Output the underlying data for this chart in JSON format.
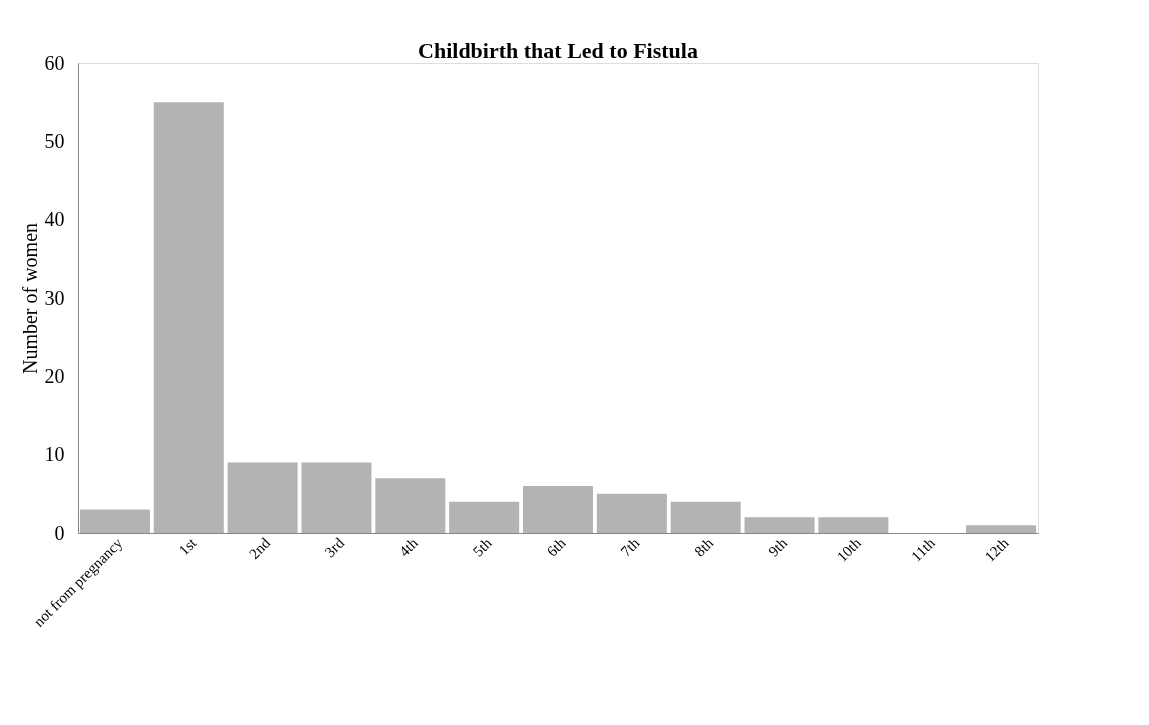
{
  "chart_data": {
    "type": "bar",
    "title": "Childbirth that Led to Fistula",
    "ylabel": "Number of women",
    "categories": [
      "not from pregnancy",
      "1st",
      "2nd",
      "3rd",
      "4th",
      "5th",
      "6th",
      "7th",
      "8th",
      "9th",
      "10th",
      "11th",
      "12th"
    ],
    "values": [
      3,
      55,
      9,
      9,
      7,
      4,
      6,
      5,
      4,
      2,
      2,
      0,
      1
    ],
    "color": "#b3b3b3",
    "ylim": [
      0,
      60
    ],
    "yticks": [
      0,
      10,
      20,
      30,
      40,
      50,
      60
    ],
    "grid": false
  }
}
